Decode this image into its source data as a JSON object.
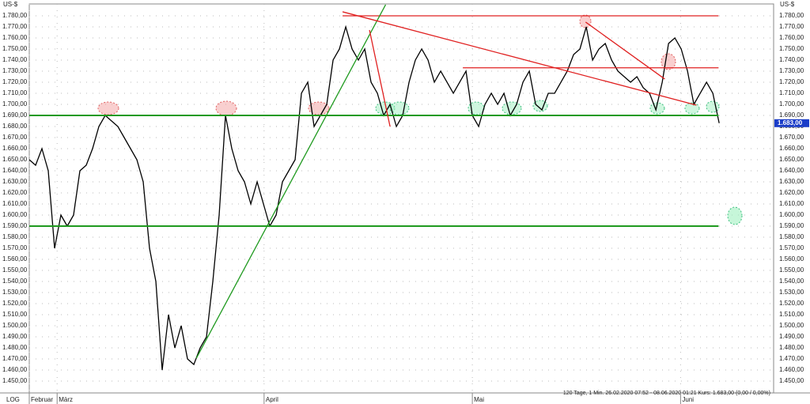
{
  "chart_data": {
    "type": "line",
    "y_unit": "US-$",
    "axis_mode": "LOG",
    "info": "120 Tage, 1 Min. 26.02.2020 07:52 - 08.06.2020 01:21 Kurs: 1.683,00 (0,00 / 0,00%)",
    "current_price": {
      "value": 1683,
      "label": "1.683,00"
    },
    "xlim": [
      0,
      117.6
    ],
    "ylim": [
      1439.3,
      1790.7
    ],
    "xticks": [
      {
        "value": 0,
        "label": "Februar"
      },
      {
        "value": 4.4,
        "label": "März"
      },
      {
        "value": 37.1,
        "label": "April"
      },
      {
        "value": 70,
        "label": "Mai"
      },
      {
        "value": 102.9,
        "label": "Juni"
      }
    ],
    "yticks": [
      {
        "value": 1450,
        "label": "1.450,00"
      },
      {
        "value": 1460,
        "label": "1.460,00"
      },
      {
        "value": 1470,
        "label": "1.470,00"
      },
      {
        "value": 1480,
        "label": "1.480,00"
      },
      {
        "value": 1490,
        "label": "1.490,00"
      },
      {
        "value": 1500,
        "label": "1.500,00"
      },
      {
        "value": 1510,
        "label": "1.510,00"
      },
      {
        "value": 1520,
        "label": "1.520,00"
      },
      {
        "value": 1530,
        "label": "1.530,00"
      },
      {
        "value": 1540,
        "label": "1.540,00"
      },
      {
        "value": 1550,
        "label": "1.550,00"
      },
      {
        "value": 1560,
        "label": "1.560,00"
      },
      {
        "value": 1570,
        "label": "1.570,00"
      },
      {
        "value": 1580,
        "label": "1.580,00"
      },
      {
        "value": 1590,
        "label": "1.590,00"
      },
      {
        "value": 1600,
        "label": "1.600,00"
      },
      {
        "value": 1610,
        "label": "1.610,00"
      },
      {
        "value": 1620,
        "label": "1.620,00"
      },
      {
        "value": 1630,
        "label": "1.630,00"
      },
      {
        "value": 1640,
        "label": "1.640,00"
      },
      {
        "value": 1650,
        "label": "1.650,00"
      },
      {
        "value": 1660,
        "label": "1.660,00"
      },
      {
        "value": 1670,
        "label": "1.670,00"
      },
      {
        "value": 1680,
        "label": "1.680,00"
      },
      {
        "value": 1690,
        "label": "1.690,00"
      },
      {
        "value": 1700,
        "label": "1.700,00"
      },
      {
        "value": 1710,
        "label": "1.710,00"
      },
      {
        "value": 1720,
        "label": "1.720,00"
      },
      {
        "value": 1730,
        "label": "1.730,00"
      },
      {
        "value": 1740,
        "label": "1.740,00"
      },
      {
        "value": 1750,
        "label": "1.750,00"
      },
      {
        "value": 1760,
        "label": "1.760,00"
      },
      {
        "value": 1770,
        "label": "1.770,00"
      },
      {
        "value": 1780,
        "label": "1.780,00"
      }
    ],
    "grid": true,
    "series": [
      {
        "color": "#000000",
        "x": [
          0,
          1,
          2,
          3,
          4,
          5,
          6,
          7,
          8,
          9,
          10,
          11,
          12,
          13,
          14,
          15,
          16,
          17,
          18,
          19,
          20,
          21,
          22,
          23,
          24,
          25,
          26,
          27,
          28,
          29,
          30,
          31,
          32,
          33,
          34,
          35,
          36,
          37,
          38,
          39,
          40,
          41,
          42,
          43,
          44,
          45,
          46,
          47,
          48,
          49,
          50,
          51,
          52,
          53,
          54,
          55,
          56,
          57,
          58,
          59,
          60,
          61,
          62,
          63,
          64,
          65,
          66,
          67,
          68,
          69,
          70,
          71,
          72,
          73,
          74,
          75,
          76,
          77,
          78,
          79,
          80,
          81,
          82,
          83,
          84,
          85,
          86,
          87,
          88,
          89,
          90,
          91,
          92,
          93,
          94,
          95,
          96,
          97,
          98,
          99,
          100,
          101,
          102,
          103,
          104,
          105,
          106,
          107,
          108,
          109
        ],
        "values": [
          1650,
          1645,
          1660,
          1640,
          1570,
          1600,
          1590,
          1600,
          1640,
          1645,
          1660,
          1680,
          1690,
          1685,
          1680,
          1670,
          1660,
          1650,
          1630,
          1570,
          1540,
          1460,
          1510,
          1480,
          1500,
          1470,
          1465,
          1480,
          1490,
          1540,
          1600,
          1690,
          1660,
          1640,
          1630,
          1610,
          1630,
          1610,
          1590,
          1600,
          1630,
          1640,
          1650,
          1710,
          1720,
          1680,
          1690,
          1700,
          1740,
          1750,
          1770,
          1750,
          1740,
          1750,
          1720,
          1710,
          1690,
          1700,
          1680,
          1690,
          1720,
          1740,
          1750,
          1740,
          1720,
          1730,
          1720,
          1710,
          1720,
          1730,
          1690,
          1680,
          1700,
          1710,
          1700,
          1710,
          1690,
          1700,
          1720,
          1730,
          1700,
          1695,
          1710,
          1710,
          1720,
          1730,
          1745,
          1750,
          1770,
          1740,
          1750,
          1755,
          1740,
          1730,
          1725,
          1720,
          1725,
          1715,
          1710,
          1695,
          1720,
          1755,
          1760,
          1750,
          1730,
          1700,
          1710,
          1720,
          1710,
          1683
        ]
      }
    ],
    "levels": [
      {
        "value": 1690,
        "x": [
          0,
          108.9
        ],
        "color": "#1f9a1f"
      },
      {
        "value": 1590,
        "x": [
          0,
          108.9
        ],
        "color": "#1f9a1f"
      },
      {
        "value": 1780,
        "x": [
          49.5,
          108.9
        ],
        "color": "#e02020"
      },
      {
        "value": 1733,
        "x": [
          68.5,
          108.9
        ],
        "color": "#e02020"
      }
    ],
    "trendlines": [
      {
        "x": [
          26.4,
          56.3
        ],
        "y": [
          1470.7,
          1790
        ],
        "color": "#1f9a1f"
      },
      {
        "x": [
          49.5,
          105.4
        ],
        "y": [
          1783.6,
          1699.3
        ],
        "color": "#e02020"
      },
      {
        "x": [
          53.75,
          57
        ],
        "y": [
          1767.1,
          1680
        ],
        "color": "#e02020"
      },
      {
        "x": [
          87.9,
          100.4
        ],
        "y": [
          1774.3,
          1722.9
        ],
        "color": "#e02020"
      }
    ]
  }
}
